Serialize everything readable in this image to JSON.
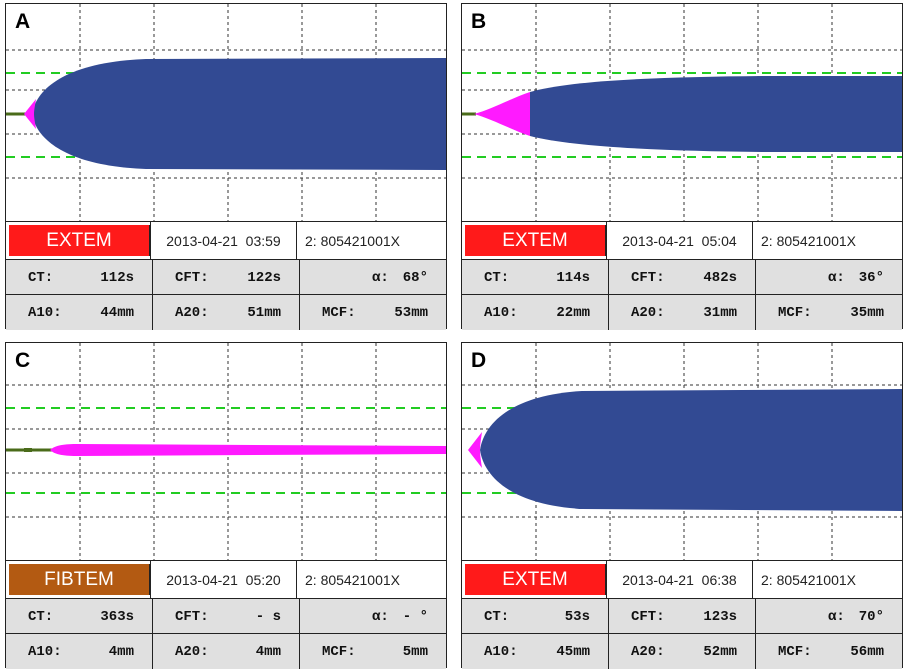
{
  "colors": {
    "grid": "#333333",
    "green_dash": "#22cc22",
    "baseline": "#4a6b1a",
    "clot": "#324a93",
    "magenta": "#ff1aff",
    "extem": "#ff1a1a",
    "fibtem": "#b35a12"
  },
  "panels": [
    {
      "id": "A",
      "label": "A",
      "assay": "EXTEM",
      "date": "2013-04-21",
      "time": "03:59",
      "sample": "2: 805421001X",
      "ct_label": "CT:",
      "ct": "112s",
      "cft_label": "CFT:",
      "cft": "122s",
      "alpha_label": "α:",
      "alpha": "68°",
      "a10_label": "A10:",
      "a10": "44mm",
      "a20_label": "A20:",
      "a20": "51mm",
      "mcf_label": "MCF:",
      "mcf": "53mm"
    },
    {
      "id": "B",
      "label": "B",
      "assay": "EXTEM",
      "date": "2013-04-21",
      "time": "05:04",
      "sample": "2: 805421001X",
      "ct_label": "CT:",
      "ct": "114s",
      "cft_label": "CFT:",
      "cft": "482s",
      "alpha_label": "α:",
      "alpha": "36°",
      "a10_label": "A10:",
      "a10": "22mm",
      "a20_label": "A20:",
      "a20": "31mm",
      "mcf_label": "MCF:",
      "mcf": "35mm"
    },
    {
      "id": "C",
      "label": "C",
      "assay": "FIBTEM",
      "date": "2013-04-21",
      "time": "05:20",
      "sample": "2: 805421001X",
      "ct_label": "CT:",
      "ct": "363s",
      "cft_label": "CFT:",
      "cft": "- s",
      "alpha_label": "α:",
      "alpha": "- °",
      "a10_label": "A10:",
      "a10": "4mm",
      "a20_label": "A20:",
      "a20": "4mm",
      "mcf_label": "MCF:",
      "mcf": "5mm"
    },
    {
      "id": "D",
      "label": "D",
      "assay": "EXTEM",
      "date": "2013-04-21",
      "time": "06:38",
      "sample": "2: 805421001X",
      "ct_label": "CT:",
      "ct": "53s",
      "cft_label": "CFT:",
      "cft": "123s",
      "alpha_label": "α:",
      "alpha": "70°",
      "a10_label": "A10:",
      "a10": "45mm",
      "a20_label": "A20:",
      "a20": "52mm",
      "mcf_label": "MCF:",
      "mcf": "56mm"
    }
  ]
}
